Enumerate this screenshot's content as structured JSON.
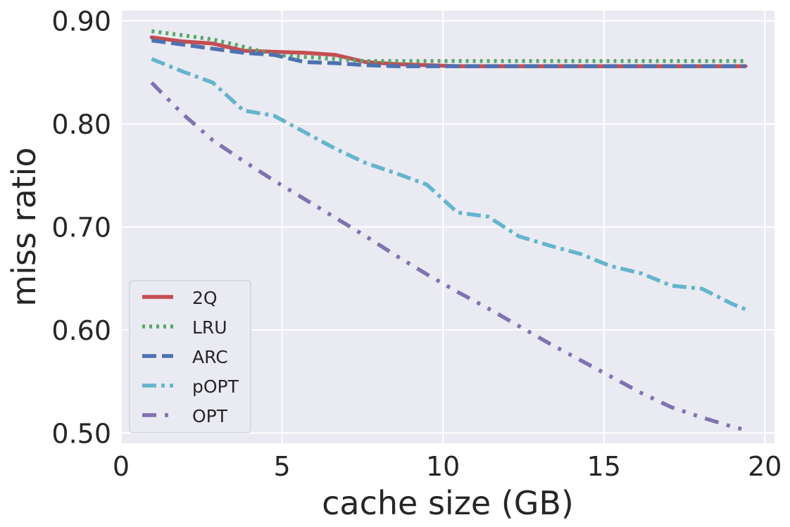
{
  "chart_data": {
    "type": "line",
    "title": "",
    "xlabel": "cache size (GB)",
    "ylabel": "miss ratio",
    "xlim": [
      0,
      20.3
    ],
    "ylim": [
      0.49,
      0.91
    ],
    "x_ticks": [
      0,
      5,
      10,
      15,
      20
    ],
    "x_tick_labels": [
      "0",
      "5",
      "10",
      "15",
      "20"
    ],
    "y_ticks": [
      0.5,
      0.6,
      0.7,
      0.8,
      0.9
    ],
    "y_tick_labels": [
      "0.50",
      "0.60",
      "0.70",
      "0.80",
      "0.90"
    ],
    "grid": true,
    "legend_position": "lower-left",
    "background": "#EAEAF2",
    "series": [
      {
        "name": "2Q",
        "color": "#C44E52",
        "dash": "solid",
        "x": [
          0.95,
          1.9,
          2.85,
          3.8,
          4.75,
          5.7,
          6.65,
          7.6,
          8.55,
          9.5,
          10.45,
          11.4,
          12.35,
          13.3,
          14.25,
          15.2,
          16.15,
          17.1,
          18.05,
          19.0,
          19.4
        ],
        "y": [
          0.884,
          0.88,
          0.878,
          0.871,
          0.87,
          0.869,
          0.867,
          0.86,
          0.858,
          0.857,
          0.856,
          0.856,
          0.856,
          0.856,
          0.856,
          0.856,
          0.856,
          0.856,
          0.856,
          0.856,
          0.856
        ]
      },
      {
        "name": "LRU",
        "color": "#55A868",
        "dash": "dotted",
        "x": [
          0.95,
          1.9,
          2.85,
          3.8,
          4.75,
          5.7,
          6.65,
          7.6,
          8.55,
          9.5,
          10.45,
          11.4,
          12.35,
          13.3,
          14.25,
          15.2,
          16.15,
          17.1,
          18.05,
          19.0,
          19.4
        ],
        "y": [
          0.89,
          0.886,
          0.882,
          0.875,
          0.867,
          0.865,
          0.863,
          0.861,
          0.861,
          0.861,
          0.861,
          0.861,
          0.861,
          0.861,
          0.861,
          0.861,
          0.861,
          0.861,
          0.861,
          0.861,
          0.861
        ]
      },
      {
        "name": "ARC",
        "color": "#4C72B0",
        "dash": "dashed",
        "x": [
          0.95,
          1.9,
          2.85,
          3.8,
          4.75,
          5.7,
          6.65,
          7.6,
          8.55,
          9.5,
          10.45,
          11.4,
          12.35,
          13.3,
          14.25,
          15.2,
          16.15,
          17.1,
          18.05,
          19.0,
          19.4
        ],
        "y": [
          0.881,
          0.877,
          0.873,
          0.869,
          0.867,
          0.86,
          0.859,
          0.857,
          0.856,
          0.856,
          0.856,
          0.856,
          0.856,
          0.856,
          0.856,
          0.856,
          0.856,
          0.856,
          0.856,
          0.856,
          0.856
        ]
      },
      {
        "name": "pOPT",
        "color": "#64B5CD",
        "dash": "dashdot",
        "x": [
          0.95,
          1.9,
          2.85,
          3.8,
          4.75,
          5.7,
          6.65,
          7.6,
          8.55,
          9.5,
          10.45,
          11.4,
          12.35,
          13.3,
          14.25,
          15.2,
          16.15,
          17.1,
          18.05,
          19.0,
          19.4
        ],
        "y": [
          0.863,
          0.851,
          0.84,
          0.813,
          0.808,
          0.792,
          0.776,
          0.762,
          0.752,
          0.741,
          0.714,
          0.71,
          0.691,
          0.682,
          0.674,
          0.662,
          0.655,
          0.643,
          0.64,
          0.625,
          0.62
        ]
      },
      {
        "name": "OPT",
        "color": "#8172B2",
        "dash": "dashdotdot",
        "x": [
          0.95,
          1.9,
          2.85,
          3.8,
          4.75,
          5.7,
          6.65,
          7.6,
          8.55,
          9.5,
          10.45,
          11.4,
          12.35,
          13.3,
          14.25,
          15.2,
          16.15,
          17.1,
          18.05,
          19.0,
          19.4
        ],
        "y": [
          0.84,
          0.81,
          0.784,
          0.764,
          0.745,
          0.727,
          0.709,
          0.691,
          0.672,
          0.654,
          0.637,
          0.621,
          0.604,
          0.587,
          0.571,
          0.555,
          0.539,
          0.525,
          0.515,
          0.506,
          0.503
        ]
      }
    ]
  }
}
